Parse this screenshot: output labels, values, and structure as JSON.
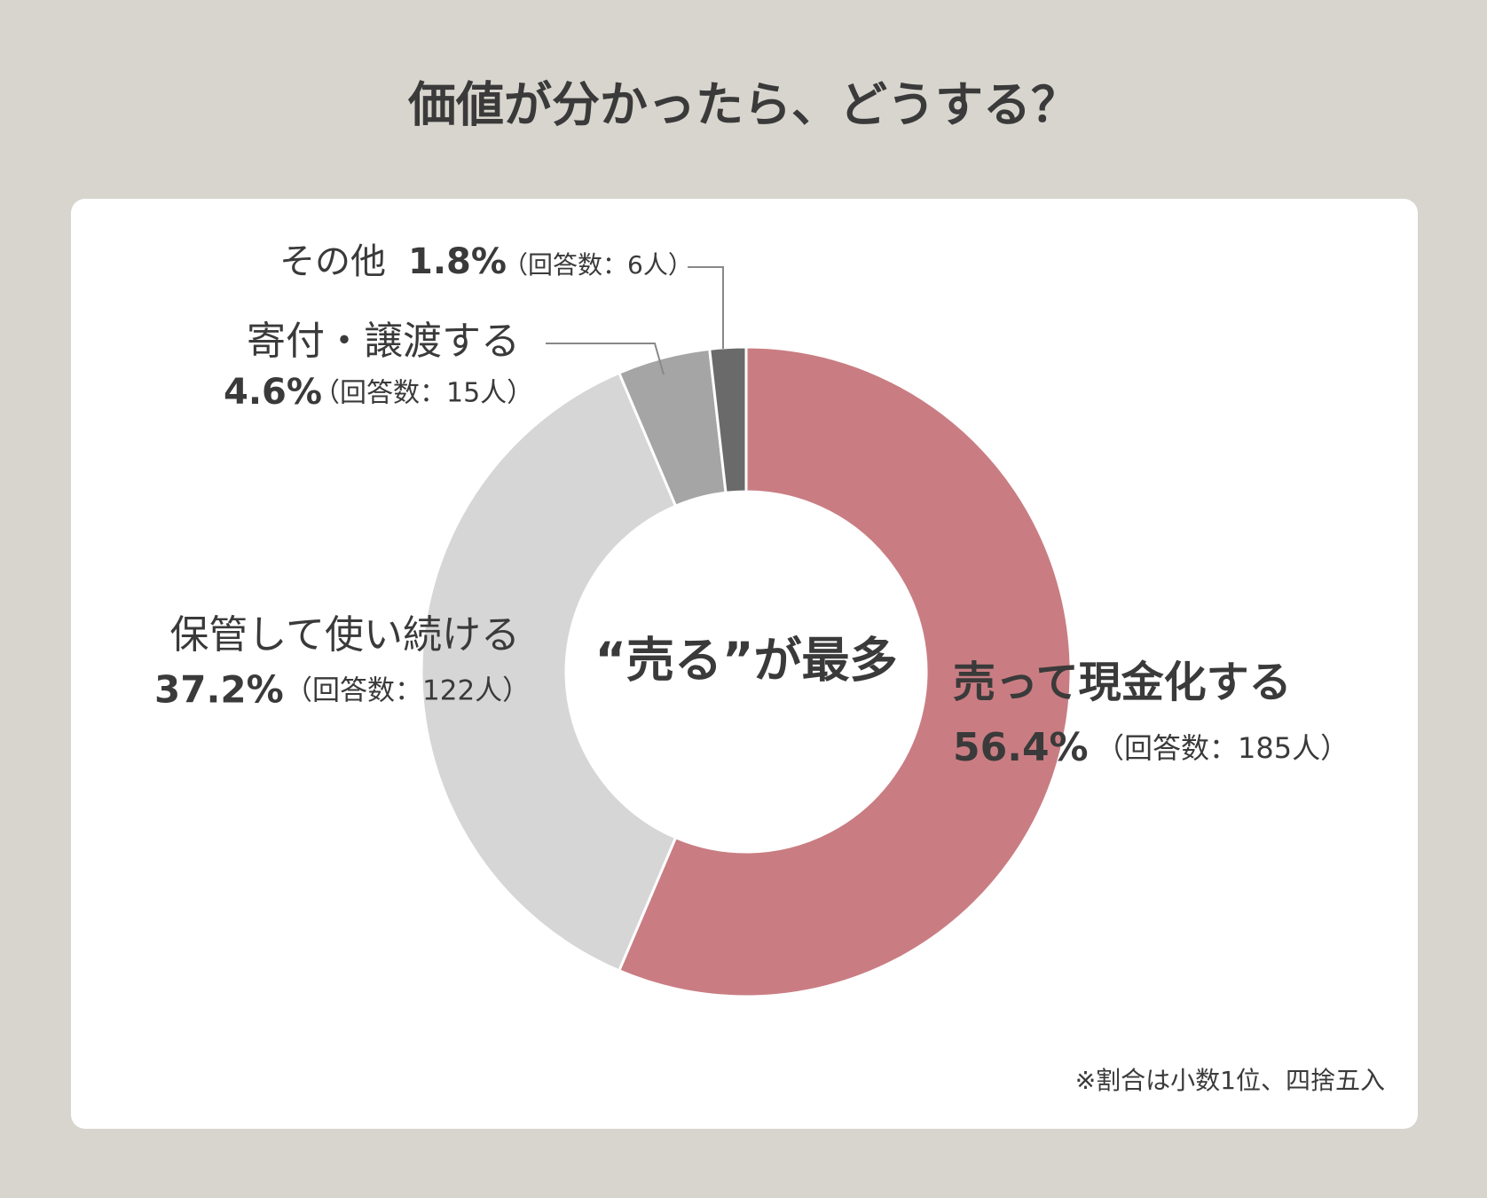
{
  "chart_data": {
    "type": "pie",
    "donut": true,
    "title": "価値が分かったら、どうする？",
    "center_label": "“売る”が最多",
    "note": "※割合は小数1位、四捨五入",
    "categories": [
      "売って現金化する",
      "保管して使い続ける",
      "寄付・譲渡する",
      "その他"
    ],
    "values": [
      56.4,
      37.2,
      4.6,
      1.8
    ],
    "value_labels": [
      "56.4%",
      "37.2%",
      "4.6%",
      "1.8%"
    ],
    "count_labels": [
      "（回答数：185人）",
      "（回答数：122人）",
      "（回答数：15人）",
      "（回答数：6人）"
    ],
    "colors": [
      "#c97d82",
      "#d6d6d6",
      "#a5a5a5",
      "#6a6a6a"
    ]
  }
}
